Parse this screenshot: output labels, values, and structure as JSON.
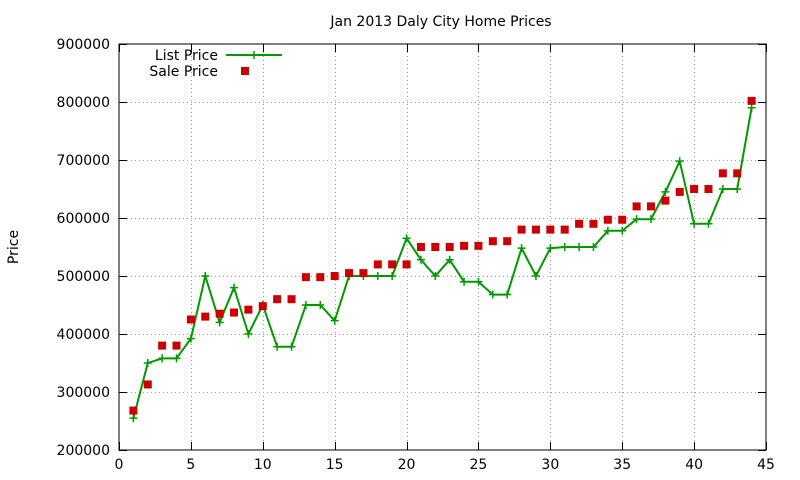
{
  "chart_data": {
    "type": "line",
    "title": "Jan 2013 Daly City Home Prices",
    "xlabel": "",
    "ylabel": "Price",
    "xlim": [
      0,
      45
    ],
    "ylim": [
      200000,
      900000
    ],
    "x_ticks": [
      0,
      5,
      10,
      15,
      20,
      25,
      30,
      35,
      40,
      45
    ],
    "y_ticks": [
      200000,
      300000,
      400000,
      500000,
      600000,
      700000,
      800000,
      900000
    ],
    "x_tick_labels": [
      "0",
      "5",
      "10",
      "15",
      "20",
      "25",
      "30",
      "35",
      "40",
      "45"
    ],
    "y_tick_labels": [
      "200000",
      "300000",
      "400000",
      "500000",
      "600000",
      "700000",
      "800000",
      "900000"
    ],
    "grid": true,
    "legend_position": "top-left",
    "series": [
      {
        "name": "List Price",
        "style": "line-with-plus-markers",
        "color": "#009900",
        "x": [
          1,
          2,
          3,
          4,
          5,
          6,
          7,
          8,
          9,
          10,
          11,
          12,
          13,
          14,
          15,
          16,
          17,
          18,
          19,
          20,
          21,
          22,
          23,
          24,
          25,
          26,
          27,
          28,
          29,
          30,
          31,
          32,
          33,
          34,
          35,
          36,
          37,
          38,
          39,
          40,
          41,
          42,
          43,
          44
        ],
        "values": [
          255000,
          350000,
          358000,
          358000,
          392000,
          500000,
          420000,
          480000,
          400000,
          450000,
          378000,
          378000,
          450000,
          450000,
          423000,
          500000,
          500000,
          500000,
          500000,
          565000,
          528000,
          500000,
          528000,
          490000,
          490000,
          468000,
          468000,
          548000,
          500000,
          548000,
          550000,
          550000,
          550000,
          578000,
          578000,
          598000,
          598000,
          645000,
          698000,
          590000,
          590000,
          650000,
          650000,
          790000
        ]
      },
      {
        "name": "Sale Price",
        "style": "square-markers",
        "color": "#cc0000",
        "x": [
          1,
          2,
          3,
          4,
          5,
          6,
          7,
          8,
          9,
          10,
          11,
          12,
          13,
          14,
          15,
          16,
          17,
          18,
          19,
          20,
          21,
          22,
          23,
          24,
          25,
          26,
          27,
          28,
          29,
          30,
          31,
          32,
          33,
          34,
          35,
          36,
          37,
          38,
          39,
          40,
          41,
          42,
          43,
          44
        ],
        "values": [
          268000,
          313000,
          380000,
          380000,
          425000,
          430000,
          435000,
          437000,
          442000,
          448000,
          460000,
          460000,
          498000,
          498000,
          500000,
          505000,
          505000,
          520000,
          520000,
          520000,
          550000,
          550000,
          550000,
          552000,
          552000,
          560000,
          560000,
          580000,
          580000,
          580000,
          580000,
          590000,
          590000,
          597000,
          597000,
          620000,
          620000,
          630000,
          645000,
          650000,
          650000,
          677000,
          677000,
          802000
        ]
      }
    ]
  }
}
